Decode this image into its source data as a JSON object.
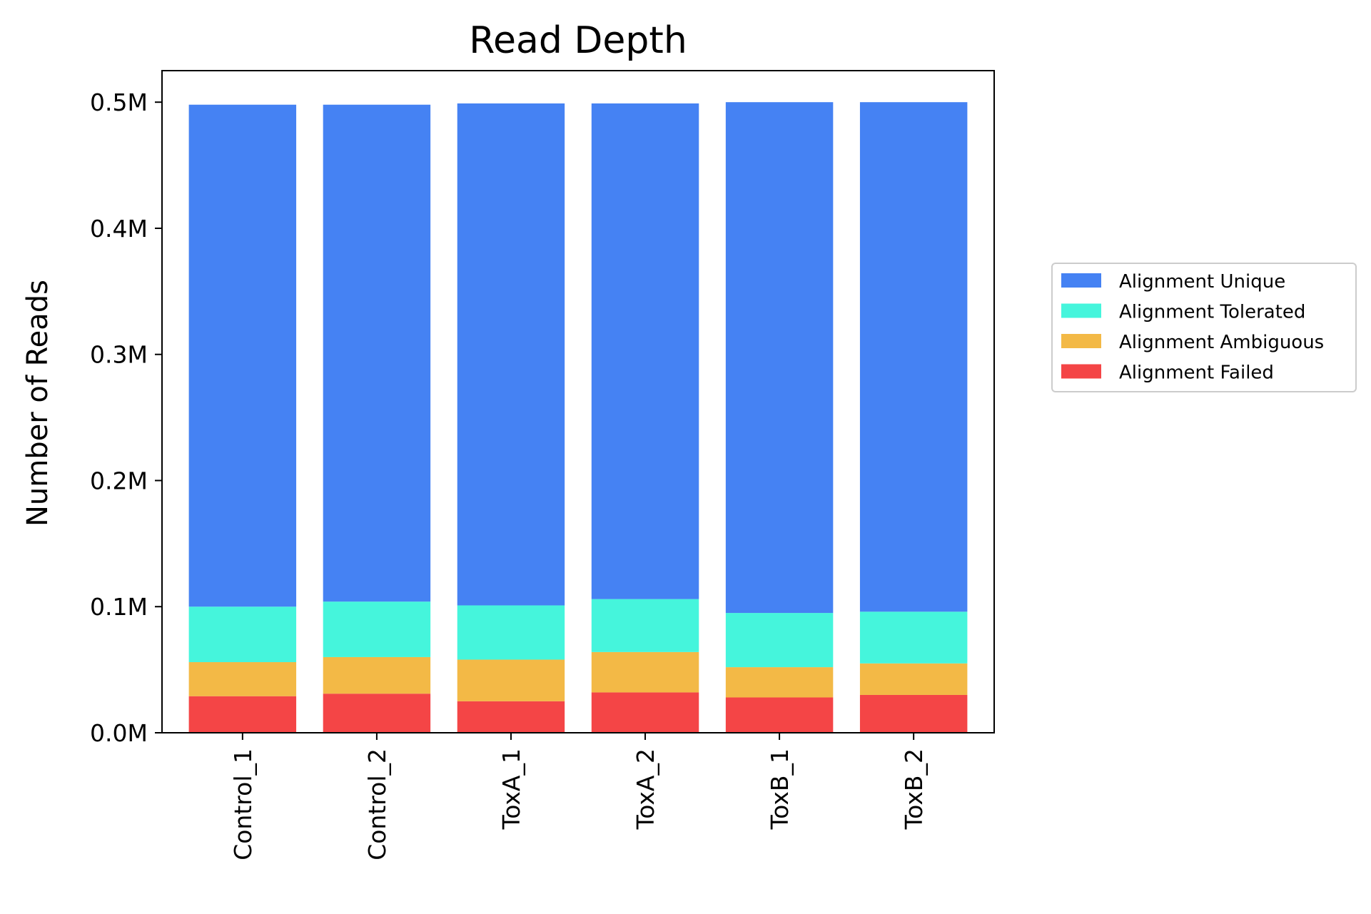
{
  "chart_data": {
    "type": "bar",
    "stacked": true,
    "title": "Read Depth",
    "xlabel": "",
    "ylabel": "Number of Reads",
    "ylim": [
      0,
      0.525
    ],
    "y_unit_suffix": "M",
    "yticks": [
      "0.0M",
      "0.1M",
      "0.2M",
      "0.3M",
      "0.4M",
      "0.5M"
    ],
    "ytick_values": [
      0.0,
      0.1,
      0.2,
      0.3,
      0.4,
      0.5
    ],
    "categories": [
      "Control_1",
      "Control_2",
      "ToxA_1",
      "ToxA_2",
      "ToxB_1",
      "ToxB_2"
    ],
    "series": [
      {
        "name": "Alignment Failed",
        "color": "#f44546",
        "values": [
          0.029,
          0.031,
          0.025,
          0.032,
          0.028,
          0.03
        ]
      },
      {
        "name": "Alignment Ambiguous",
        "color": "#f3b946",
        "values": [
          0.027,
          0.029,
          0.033,
          0.032,
          0.024,
          0.025
        ]
      },
      {
        "name": "Alignment Tolerated",
        "color": "#45f5dc",
        "values": [
          0.044,
          0.044,
          0.043,
          0.042,
          0.043,
          0.041
        ]
      },
      {
        "name": "Alignment Unique",
        "color": "#4582f3",
        "values": [
          0.398,
          0.394,
          0.398,
          0.393,
          0.405,
          0.404
        ]
      }
    ],
    "legend_order": [
      "Alignment Unique",
      "Alignment Tolerated",
      "Alignment Ambiguous",
      "Alignment Failed"
    ],
    "legend_position": "right",
    "grid": false
  }
}
